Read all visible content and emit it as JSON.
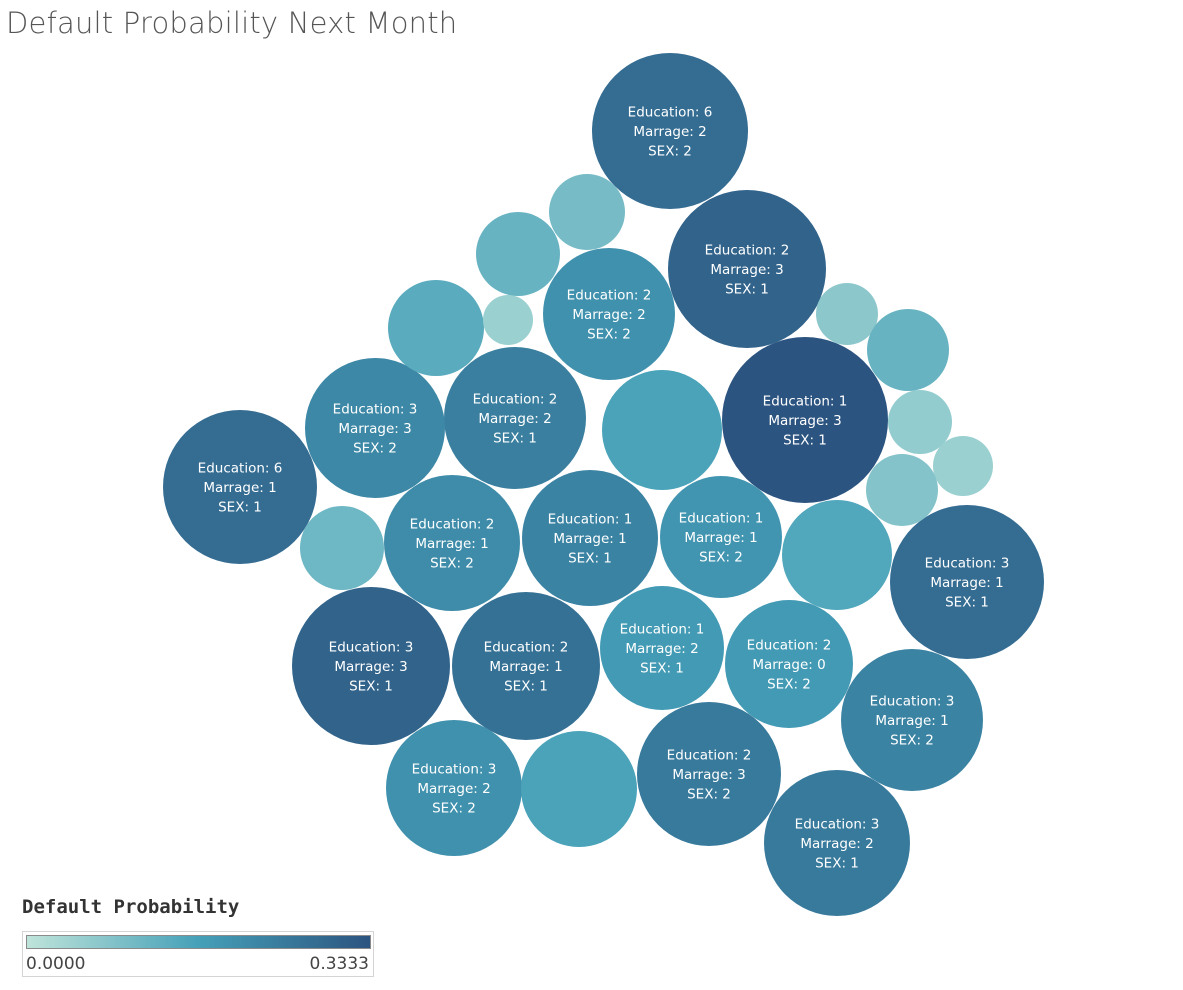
{
  "title": "Default Probability Next Month",
  "legend": {
    "title": "Default Probability",
    "min_label": "0.0000",
    "max_label": "0.3333",
    "color_low": "#bfe4da",
    "color_mid": "#45a0b8",
    "color_high": "#2c5480"
  },
  "chart_data": {
    "type": "packed-bubble",
    "title": "Default Probability Next Month",
    "color_measure": "Default Probability",
    "color_range": [
      0.0,
      0.3333
    ],
    "bubbles": [
      {
        "lines": [
          "Education: 6",
          "Marrage: 2",
          "SEX: 2"
        ],
        "value": 0.28
      },
      {
        "lines": [
          "Education: 2",
          "Marrage: 3",
          "SEX: 1"
        ],
        "value": 0.3
      },
      {
        "lines": [
          "Education: 2",
          "Marrage: 2",
          "SEX: 2"
        ],
        "value": 0.2
      },
      {
        "lines": [
          "Education: 1",
          "Marrage: 3",
          "SEX: 1"
        ],
        "value": 0.3333
      },
      {
        "lines": [
          "Education: 2",
          "Marrage: 2",
          "SEX: 1"
        ],
        "value": 0.24
      },
      {
        "lines": [
          "Education: 3",
          "Marrage: 3",
          "SEX: 2"
        ],
        "value": 0.22
      },
      {
        "lines": [
          "Education: 6",
          "Marrage: 1",
          "SEX: 1"
        ],
        "value": 0.28
      },
      {
        "lines": [
          "Education: 2",
          "Marrage: 1",
          "SEX: 2"
        ],
        "value": 0.21
      },
      {
        "lines": [
          "Education: 1",
          "Marrage: 1",
          "SEX: 1"
        ],
        "value": 0.23
      },
      {
        "lines": [
          "Education: 1",
          "Marrage: 1",
          "SEX: 2"
        ],
        "value": 0.19
      },
      {
        "lines": [
          "Education: 3",
          "Marrage: 1",
          "SEX: 1"
        ],
        "value": 0.28
      },
      {
        "lines": [
          "Education: 3",
          "Marrage: 3",
          "SEX: 1"
        ],
        "value": 0.3
      },
      {
        "lines": [
          "Education: 2",
          "Marrage: 1",
          "SEX: 1"
        ],
        "value": 0.27
      },
      {
        "lines": [
          "Education: 1",
          "Marrage: 2",
          "SEX: 1"
        ],
        "value": 0.18
      },
      {
        "lines": [
          "Education: 2",
          "Marrage: 0",
          "SEX: 2"
        ],
        "value": 0.18
      },
      {
        "lines": [
          "Education: 3",
          "Marrage: 1",
          "SEX: 2"
        ],
        "value": 0.23
      },
      {
        "lines": [
          "Education: 3",
          "Marrage: 2",
          "SEX: 2"
        ],
        "value": 0.2
      },
      {
        "lines": [
          "Education: 2",
          "Marrage: 3",
          "SEX: 2"
        ],
        "value": 0.25
      },
      {
        "lines": [
          "Education: 3",
          "Marrage: 2",
          "SEX: 1"
        ],
        "value": 0.25
      },
      {
        "lines": [],
        "value": 0.1
      },
      {
        "lines": [],
        "value": 0.12
      },
      {
        "lines": [],
        "value": 0.14
      },
      {
        "lines": [],
        "value": 0.05
      },
      {
        "lines": [],
        "value": 0.16
      },
      {
        "lines": [],
        "value": 0.07
      },
      {
        "lines": [],
        "value": 0.12
      },
      {
        "lines": [],
        "value": 0.06
      },
      {
        "lines": [],
        "value": 0.05
      },
      {
        "lines": [],
        "value": 0.08
      },
      {
        "lines": [],
        "value": 0.11
      },
      {
        "lines": [],
        "value": 0.15
      },
      {
        "lines": [],
        "value": 0.16
      }
    ]
  }
}
